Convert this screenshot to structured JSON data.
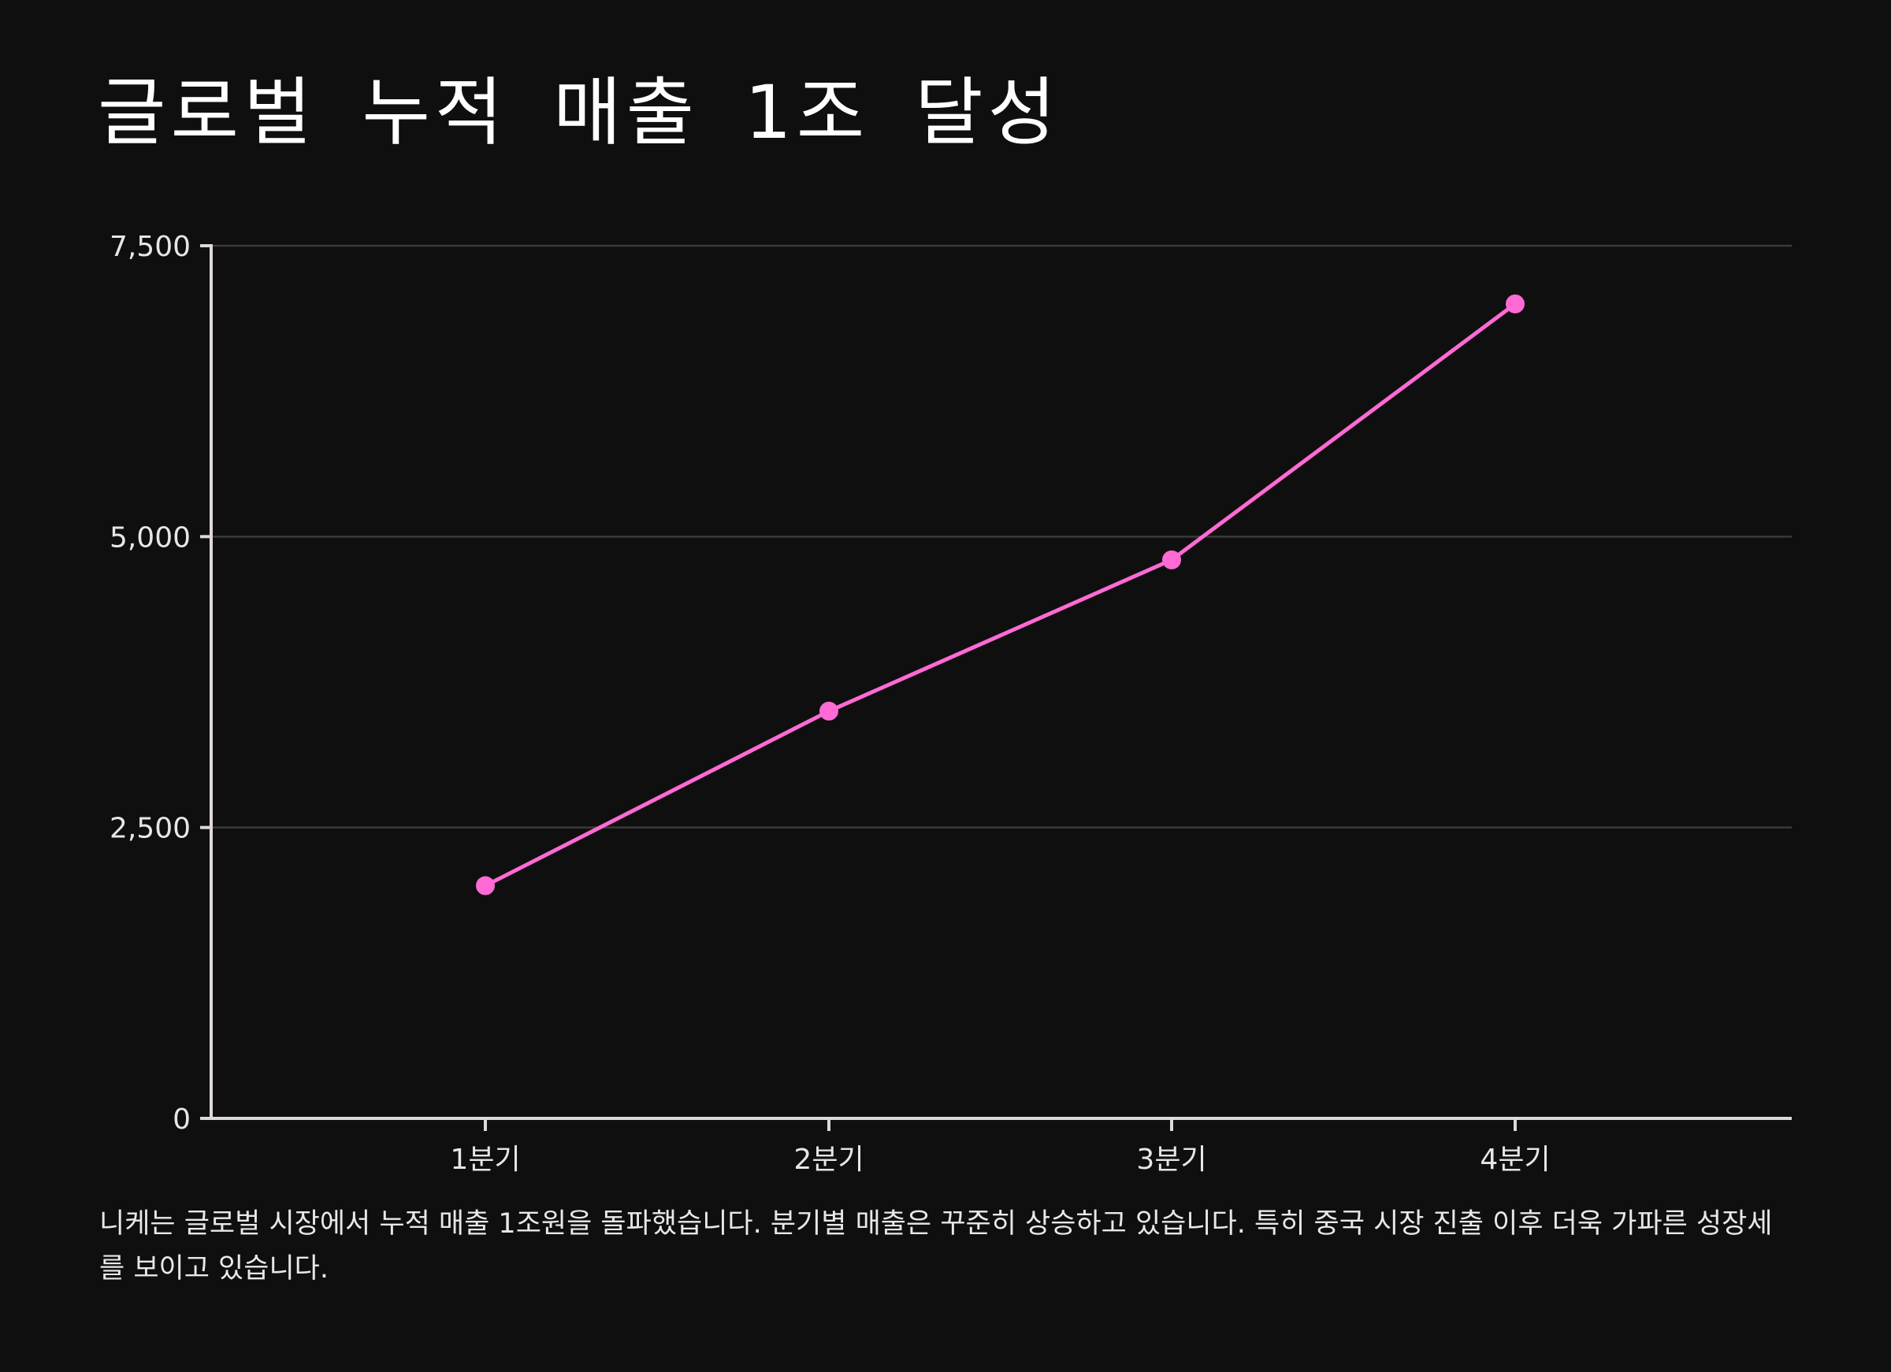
{
  "title": "글로벌 누적 매출 1조 달성",
  "caption": "니케는 글로벌 시장에서 누적 매출 1조원을 돌파했습니다. 분기별 매출은 꾸준히 상승하고 있습니다. 특히 중국 시장 진출 이후 더욱 가파른 성장세를 보이고 있습니다.",
  "colors": {
    "background": "#0f0f0f",
    "line": "#ff6ad5",
    "axis": "#e0d8d8",
    "grid": "#3a3a3a"
  },
  "chart_data": {
    "type": "line",
    "title": "",
    "xlabel": "",
    "ylabel": "",
    "categories": [
      "1분기",
      "2분기",
      "3분기",
      "4분기"
    ],
    "values": [
      2000,
      3500,
      4800,
      7000
    ],
    "ylim": [
      0,
      7500
    ],
    "yticks": [
      0,
      2500,
      5000,
      7500
    ],
    "ytick_labels": [
      "0",
      "2,500",
      "5,000",
      "7,500"
    ],
    "grid": "horizontal",
    "legend": "none"
  }
}
